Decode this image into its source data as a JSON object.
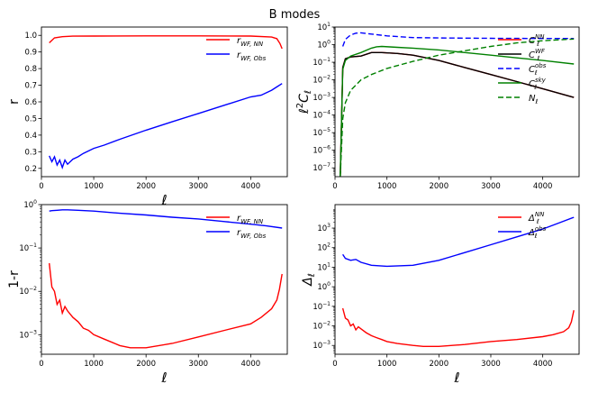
{
  "figure_title": "B modes",
  "chart_data": [
    {
      "type": "line",
      "title": "",
      "xlabel": "ℓ",
      "ylabel": "r",
      "xlim": [
        0,
        4700
      ],
      "ylim": [
        0.15,
        1.05
      ],
      "yscale": "linear",
      "xticks": [
        0,
        1000,
        2000,
        3000,
        4000
      ],
      "yticks": [
        0.2,
        0.3,
        0.4,
        0.5,
        0.6,
        0.7,
        0.8,
        0.9,
        1.0
      ],
      "ytick_labels": [
        "0.2",
        "0.3",
        "0.4",
        "0.5",
        "0.6",
        "0.7",
        "0.8",
        "0.9",
        "1.0"
      ],
      "legend": {
        "position": "top-right"
      },
      "series": [
        {
          "name": "r_{WF,NN}",
          "label": "r",
          "sub": "WF, NN",
          "sup": "",
          "color": "#ff0000",
          "dash": "",
          "x": [
            150,
            250,
            400,
            600,
            1000,
            2000,
            3000,
            4000,
            4400,
            4500,
            4560,
            4600
          ],
          "y": [
            0.955,
            0.985,
            0.992,
            0.995,
            0.996,
            0.997,
            0.997,
            0.996,
            0.99,
            0.98,
            0.95,
            0.92
          ]
        },
        {
          "name": "r_{WF,Obs}",
          "label": "r",
          "sub": "WF, Obs",
          "sup": "",
          "color": "#0000ff",
          "dash": "",
          "x": [
            150,
            200,
            250,
            300,
            350,
            400,
            450,
            500,
            600,
            700,
            800,
            1000,
            1200,
            1500,
            2000,
            2500,
            3000,
            3500,
            4000,
            4200,
            4400,
            4500,
            4600
          ],
          "y": [
            0.275,
            0.24,
            0.27,
            0.22,
            0.25,
            0.205,
            0.25,
            0.225,
            0.255,
            0.27,
            0.29,
            0.32,
            0.34,
            0.375,
            0.43,
            0.48,
            0.53,
            0.58,
            0.63,
            0.64,
            0.67,
            0.69,
            0.71
          ]
        }
      ]
    },
    {
      "type": "line",
      "title": "",
      "xlabel": "",
      "ylabel": "ℓ²C_ℓ",
      "xlim": [
        0,
        4700
      ],
      "ylim_log10": [
        -7.5,
        1
      ],
      "yscale": "log",
      "xticks": [
        0,
        1000,
        2000,
        3000,
        4000
      ],
      "yticks_log10": [
        -7,
        -6,
        -5,
        -4,
        -3,
        -2,
        -1,
        0,
        1
      ],
      "legend": {
        "position": "right"
      },
      "series": [
        {
          "name": "C_ℓ^{NN}",
          "label": "C",
          "sub": "ℓ",
          "sup": "NN",
          "color": "#ff0000",
          "dash": "",
          "x": [
            100,
            150,
            200,
            300,
            500,
            700,
            900,
            1200,
            1500,
            2000,
            2500,
            3000,
            3500,
            4000,
            4600
          ],
          "y_log10": [
            -7.5,
            -1.3,
            -0.8,
            -0.7,
            -0.65,
            -0.45,
            -0.45,
            -0.5,
            -0.6,
            -0.9,
            -1.3,
            -1.7,
            -2.1,
            -2.5,
            -3.0
          ]
        },
        {
          "name": "C_ℓ^{WF}",
          "label": "C",
          "sub": "ℓ",
          "sup": "WF",
          "color": "#000000",
          "dash": "",
          "x": [
            100,
            150,
            200,
            300,
            500,
            700,
            900,
            1200,
            1500,
            2000,
            2500,
            3000,
            3500,
            4000,
            4600
          ],
          "y_log10": [
            -7.5,
            -1.3,
            -0.8,
            -0.7,
            -0.65,
            -0.45,
            -0.45,
            -0.5,
            -0.6,
            -0.9,
            -1.3,
            -1.7,
            -2.1,
            -2.5,
            -3.0
          ]
        },
        {
          "name": "C_ℓ^{obs}",
          "label": "C",
          "sub": "ℓ",
          "sup": "obs",
          "color": "#0000ff",
          "dash": "6,3",
          "x": [
            150,
            200,
            300,
            400,
            500,
            700,
            1000,
            1500,
            2000,
            3000,
            4000,
            4600
          ],
          "y_log10": [
            -0.1,
            0.3,
            0.55,
            0.65,
            0.67,
            0.6,
            0.5,
            0.4,
            0.38,
            0.36,
            0.35,
            0.35
          ]
        },
        {
          "name": "C_ℓ^{sky}",
          "label": "C",
          "sub": "ℓ",
          "sup": "sky",
          "color": "#008000",
          "dash": "",
          "x": [
            100,
            150,
            200,
            300,
            500,
            700,
            800,
            900,
            1200,
            1500,
            2000,
            2500,
            3000,
            3500,
            4000,
            4600
          ],
          "y_log10": [
            -7.5,
            -1.4,
            -0.9,
            -0.65,
            -0.45,
            -0.2,
            -0.12,
            -0.1,
            -0.15,
            -0.2,
            -0.3,
            -0.45,
            -0.6,
            -0.75,
            -0.9,
            -1.1
          ]
        },
        {
          "name": "N_ℓ",
          "label": "N",
          "sub": "ℓ",
          "sup": "",
          "color": "#008000",
          "dash": "6,3",
          "x": [
            100,
            150,
            200,
            300,
            500,
            700,
            1000,
            1500,
            2000,
            2500,
            3000,
            3500,
            4000,
            4600
          ],
          "y_log10": [
            -7.5,
            -4.2,
            -3.3,
            -2.6,
            -2.0,
            -1.7,
            -1.35,
            -0.95,
            -0.6,
            -0.35,
            -0.1,
            0.1,
            0.22,
            0.32
          ]
        }
      ]
    },
    {
      "type": "line",
      "title": "",
      "xlabel": "ℓ",
      "ylabel": "1-r",
      "xlim": [
        0,
        4700
      ],
      "ylim_log10": [
        -3.45,
        0
      ],
      "yscale": "log",
      "xticks": [
        0,
        1000,
        2000,
        3000,
        4000
      ],
      "yticks_log10": [
        -3,
        -2,
        -1,
        0
      ],
      "legend": {
        "position": "top-right"
      },
      "series": [
        {
          "name": "r_{WF,NN}",
          "label": "r",
          "sub": "WF, NN",
          "sup": "",
          "color": "#ff0000",
          "dash": "",
          "x": [
            150,
            200,
            250,
            300,
            350,
            400,
            450,
            500,
            600,
            700,
            800,
            900,
            1000,
            1200,
            1500,
            1700,
            2000,
            2500,
            3000,
            3500,
            4000,
            4200,
            4400,
            4500,
            4550,
            4600
          ],
          "y_log10": [
            -1.35,
            -1.9,
            -2.0,
            -2.3,
            -2.2,
            -2.5,
            -2.35,
            -2.45,
            -2.6,
            -2.7,
            -2.85,
            -2.9,
            -3.0,
            -3.1,
            -3.25,
            -3.3,
            -3.3,
            -3.2,
            -3.05,
            -2.9,
            -2.75,
            -2.6,
            -2.4,
            -2.2,
            -1.95,
            -1.6
          ]
        },
        {
          "name": "r_{WF,Obs}",
          "label": "r",
          "sub": "WF, Obs",
          "sup": "",
          "color": "#0000ff",
          "dash": "",
          "x": [
            150,
            200,
            300,
            400,
            500,
            700,
            1000,
            1500,
            2000,
            2500,
            3000,
            3500,
            4000,
            4300,
            4600
          ],
          "y_log10": [
            -0.15,
            -0.14,
            -0.13,
            -0.12,
            -0.12,
            -0.13,
            -0.15,
            -0.2,
            -0.24,
            -0.29,
            -0.33,
            -0.39,
            -0.45,
            -0.49,
            -0.54
          ]
        }
      ]
    },
    {
      "type": "line",
      "title": "",
      "xlabel": "ℓ",
      "ylabel": "Δ_ℓ",
      "xlim": [
        0,
        4700
      ],
      "ylim_log10": [
        -3.45,
        4.2
      ],
      "yscale": "log",
      "xticks": [
        0,
        1000,
        2000,
        3000,
        4000
      ],
      "yticks_log10": [
        -3,
        -2,
        -1,
        0,
        1,
        2,
        3
      ],
      "legend": {
        "position": "top-right"
      },
      "series": [
        {
          "name": "Δ_ℓ^{NN}",
          "label": "Δ",
          "sub": "ℓ",
          "sup": "NN",
          "color": "#ff0000",
          "dash": "",
          "x": [
            150,
            200,
            250,
            300,
            350,
            400,
            450,
            500,
            600,
            700,
            800,
            900,
            1000,
            1200,
            1500,
            1700,
            2000,
            2500,
            3000,
            3500,
            4000,
            4200,
            4400,
            4500,
            4550,
            4600
          ],
          "y_log10": [
            -1.1,
            -1.6,
            -1.7,
            -2.0,
            -1.9,
            -2.2,
            -2.05,
            -2.15,
            -2.35,
            -2.5,
            -2.6,
            -2.7,
            -2.8,
            -2.9,
            -3.0,
            -3.05,
            -3.05,
            -2.95,
            -2.8,
            -2.7,
            -2.55,
            -2.45,
            -2.3,
            -2.1,
            -1.8,
            -1.2
          ]
        },
        {
          "name": "Δ_ℓ^{obs}",
          "label": "Δ",
          "sub": "ℓ",
          "sup": "obs",
          "color": "#0000ff",
          "dash": "",
          "x": [
            150,
            200,
            300,
            400,
            500,
            700,
            1000,
            1500,
            2000,
            2500,
            3000,
            3500,
            4000,
            4300,
            4600
          ],
          "y_log10": [
            1.65,
            1.45,
            1.35,
            1.4,
            1.25,
            1.1,
            1.05,
            1.1,
            1.35,
            1.75,
            2.15,
            2.55,
            2.95,
            3.25,
            3.55
          ]
        }
      ]
    }
  ]
}
